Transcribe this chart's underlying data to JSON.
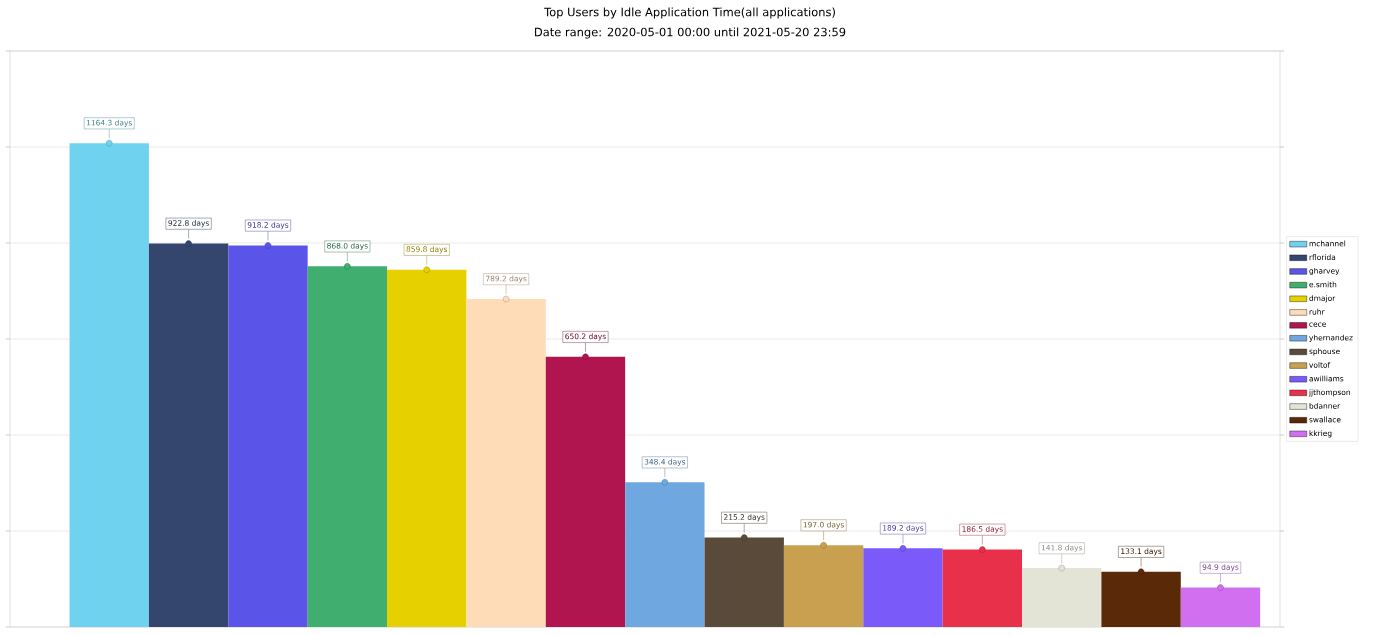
{
  "chart_data": {
    "type": "bar",
    "title": "Top Users by Idle Application Time(all applications)",
    "subtitle": "Date range: 2020-05-01 00:00 until 2021-05-20 23:59",
    "categories": [
      null
    ],
    "series": [
      {
        "name": "mchannel",
        "color": "#6fd3f0",
        "values": [
          1164.3
        ],
        "value_labels": [
          "1164.3 days"
        ]
      },
      {
        "name": "rflorida",
        "color": "#34466e",
        "values": [
          922.8
        ],
        "value_labels": [
          "922.8 days"
        ]
      },
      {
        "name": "gharvey",
        "color": "#5a55e8",
        "values": [
          918.2
        ],
        "value_labels": [
          "918.2 days"
        ]
      },
      {
        "name": "e.smith",
        "color": "#3fae6e",
        "values": [
          868.0
        ],
        "value_labels": [
          "868.0 days"
        ]
      },
      {
        "name": "dmajor",
        "color": "#e6d000",
        "values": [
          859.8
        ],
        "value_labels": [
          "859.8 days"
        ]
      },
      {
        "name": "ruhr",
        "color": "#ffdcb8",
        "values": [
          789.2
        ],
        "value_labels": [
          "789.2 days"
        ]
      },
      {
        "name": "cece",
        "color": "#b01550",
        "values": [
          650.2
        ],
        "value_labels": [
          "650.2 days"
        ]
      },
      {
        "name": "yhernandez",
        "color": "#6fa8e0",
        "values": [
          348.4
        ],
        "value_labels": [
          "348.4 days"
        ]
      },
      {
        "name": "sphouse",
        "color": "#5a4a3a",
        "values": [
          215.2
        ],
        "value_labels": [
          "215.2 days"
        ]
      },
      {
        "name": "voltof",
        "color": "#c8a050",
        "values": [
          197.0
        ],
        "value_labels": [
          "197.0 days"
        ]
      },
      {
        "name": "awilliams",
        "color": "#7a5af8",
        "values": [
          189.2
        ],
        "value_labels": [
          "189.2 days"
        ]
      },
      {
        "name": "jjthompson",
        "color": "#e8304a",
        "values": [
          186.5
        ],
        "value_labels": [
          "186.5 days"
        ]
      },
      {
        "name": "bdanner",
        "color": "#e4e4d6",
        "values": [
          141.8
        ],
        "value_labels": [
          "141.8 days"
        ]
      },
      {
        "name": "swallace",
        "color": "#5a2a08",
        "values": [
          133.1
        ],
        "value_labels": [
          "133.1 days"
        ]
      },
      {
        "name": "kkrieg",
        "color": "#d070f0",
        "values": [
          94.9
        ],
        "value_labels": [
          "94.9 days"
        ]
      }
    ],
    "ylim": [
      0,
      1386
    ],
    "yticks": [
      {
        "value": 0,
        "label": null
      },
      {
        "value": 231,
        "label": null
      },
      {
        "value": 462,
        "label": null
      },
      {
        "value": 693,
        "label": null
      },
      {
        "value": 924,
        "label": null
      },
      {
        "value": 1155,
        "label": null
      },
      {
        "value": 1386,
        "label": null
      }
    ],
    "grid": "y",
    "legend": "right",
    "marker": "circle"
  }
}
